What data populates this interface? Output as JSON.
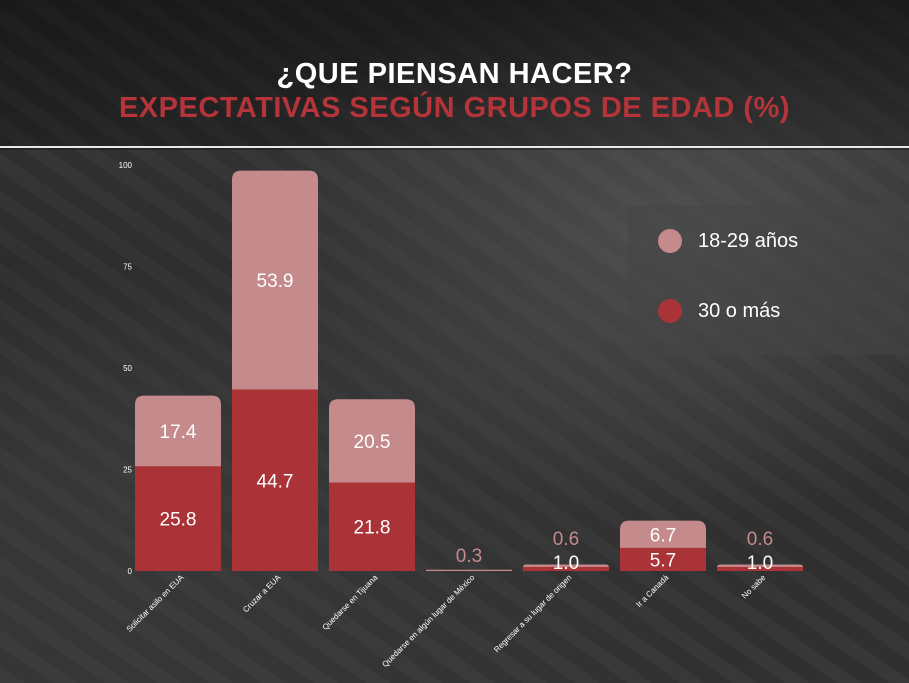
{
  "header": {
    "title": "¿QUE PIENSAN HACER?",
    "subtitle": "EXPECTATIVAS SEGÚN GRUPOS DE EDAD (%)"
  },
  "colors": {
    "series_young": "#c48a8c",
    "series_old": "#a93336",
    "subtitle": "#b4343a",
    "text": "#ffffff"
  },
  "chart_data": {
    "type": "bar",
    "stacked": true,
    "categories": [
      "Solicitar asilo en EUA",
      "Cruzar a EUA",
      "Quedarse en Tijuana",
      "Quedarse en algún lugar de México",
      "Regresar a su lugar de origen",
      "Ir a Canadá",
      "No sabe"
    ],
    "series": [
      {
        "name": "30 o más",
        "values": [
          25.8,
          44.7,
          21.8,
          null,
          1.0,
          5.7,
          1.0
        ]
      },
      {
        "name": "18-29 años",
        "values": [
          17.4,
          53.9,
          20.5,
          0.3,
          0.6,
          6.7,
          0.6
        ]
      }
    ],
    "y_ticks": [
      "0",
      "25",
      "50",
      "75",
      "100"
    ],
    "ylim": [
      0,
      100
    ],
    "grid": false,
    "legend": "right",
    "legend_order": [
      "18-29 años",
      "30 o más"
    ],
    "xlabel": "",
    "ylabel": ""
  }
}
